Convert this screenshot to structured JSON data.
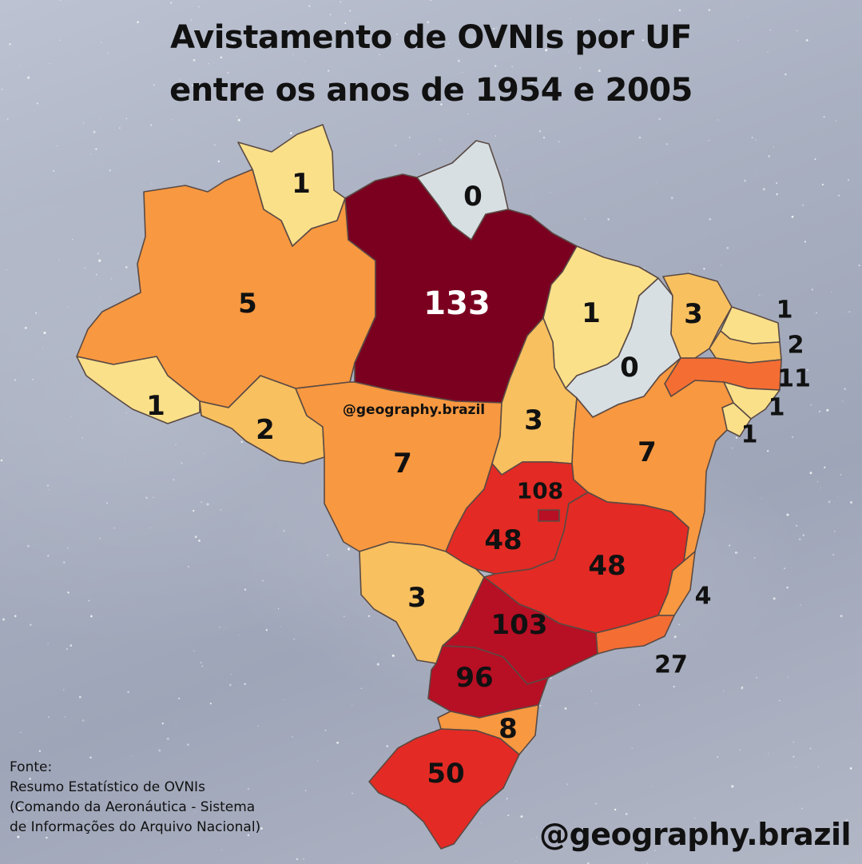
{
  "title": {
    "line1": "Avistamento de OVNIs por UF",
    "line2": "entre os anos de 1954 e 2005"
  },
  "map_watermark": "@geography.brazil",
  "handle": "@geography.brazil",
  "source": {
    "line1": "Fonte:",
    "line2": "Resumo Estatístico de OVNIs",
    "line3": "(Comando da Aeronáutica - Sistema",
    "line4": "de Informações do Arquivo Nacional)"
  },
  "colors": {
    "zero": "#d7dfe3",
    "low": "#fbe08a",
    "mid_low": "#f8c05f",
    "mid": "#f89840",
    "mid_high": "#f46d33",
    "high": "#e32a24",
    "very_high": "#b70f24",
    "max": "#7b0020"
  },
  "map_values": {
    "RR": "1",
    "AP": "0",
    "AM": "5",
    "PA": "133",
    "MA": "1",
    "PI": "0",
    "CE": "3",
    "RN": "1",
    "PB": "2",
    "PE": "11",
    "AL": "1",
    "SE": "1",
    "BA": "7",
    "AC": "1",
    "RO": "2",
    "MT": "7",
    "TO": "3",
    "DF": "108",
    "GO": "48",
    "MG": "48",
    "ES": "4",
    "RJ": "27",
    "MS": "3",
    "SP": "103",
    "PR": "96",
    "SC": "8",
    "RS": "50"
  }
}
